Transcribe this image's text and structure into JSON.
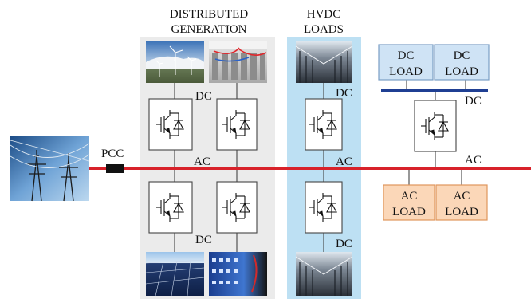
{
  "labels": {
    "distributed_line1": "DISTRIBUTED",
    "distributed_line2": "GENERATION",
    "hvdc_line1": "HVDC",
    "hvdc_line2": "LOADS",
    "pcc": "PCC",
    "ac": "AC",
    "dc": "DC",
    "dc_load_line1": "DC",
    "dc_load_line2": "LOAD",
    "ac_load_line1": "AC",
    "ac_load_line2": "LOAD"
  },
  "colors": {
    "ac_bus": "#d8222a",
    "dc_bus": "#1f3f93",
    "generation_panel": "#ebebeb",
    "hvdc_panel": "#bde0f3",
    "dc_load_fill": "#cfe3f5",
    "dc_load_stroke": "#7a9ec4",
    "ac_load_fill": "#fbd7b8",
    "ac_load_stroke": "#e0955c",
    "pcc_breaker": "#111111"
  },
  "photos": {
    "grid": "transmission-towers-photo",
    "wind": "wind-turbines-photo",
    "battery": "battery-storage-photo",
    "solar": "solar-panels-photo",
    "fuel_cell": "fuel-cell-stack-photo",
    "datacenter": "datacenter-servers-photo"
  }
}
